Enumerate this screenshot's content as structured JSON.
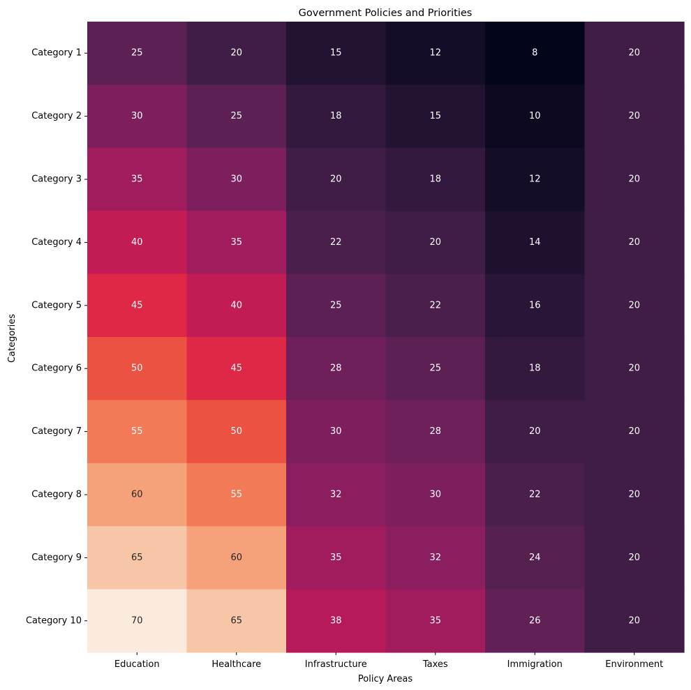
{
  "chart_data": {
    "type": "heatmap",
    "title": "Government Policies and Priorities",
    "xlabel": "Policy Areas",
    "ylabel": "Categories",
    "columns": [
      "Education",
      "Healthcare",
      "Infrastructure",
      "Taxes",
      "Immigration",
      "Environment"
    ],
    "rows": [
      "Category 1",
      "Category 2",
      "Category 3",
      "Category 4",
      "Category 5",
      "Category 6",
      "Category 7",
      "Category 8",
      "Category 9",
      "Category 10"
    ],
    "values": [
      [
        25,
        20,
        15,
        12,
        8,
        20
      ],
      [
        30,
        25,
        18,
        15,
        10,
        20
      ],
      [
        35,
        30,
        20,
        18,
        12,
        20
      ],
      [
        40,
        35,
        22,
        20,
        14,
        20
      ],
      [
        45,
        40,
        25,
        22,
        16,
        20
      ],
      [
        50,
        45,
        28,
        25,
        18,
        20
      ],
      [
        55,
        50,
        30,
        28,
        20,
        20
      ],
      [
        60,
        55,
        32,
        30,
        22,
        20
      ],
      [
        65,
        60,
        35,
        32,
        24,
        20
      ],
      [
        70,
        65,
        38,
        35,
        26,
        20
      ]
    ],
    "vmin": 8,
    "vmax": 70,
    "colormap": "rocket",
    "annotations": true,
    "colorbar": false,
    "grid": false
  }
}
